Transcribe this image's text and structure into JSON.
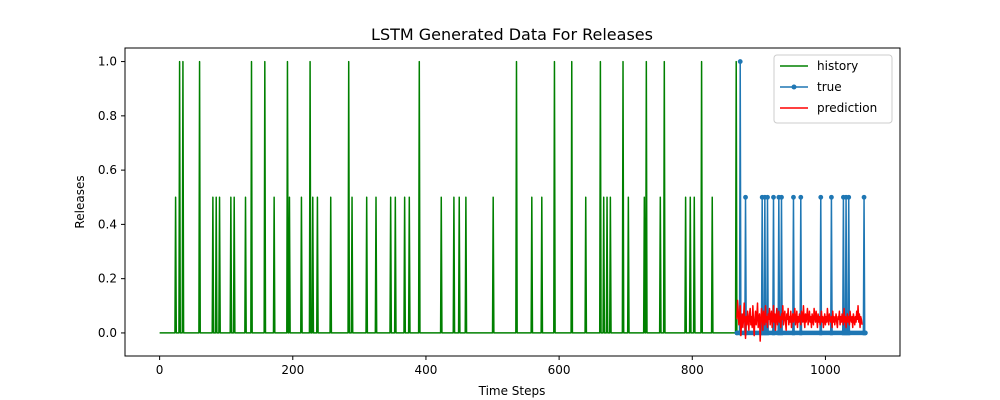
{
  "chart_data": {
    "type": "line",
    "title": "LSTM Generated Data For Releases",
    "xlabel": "Time Steps",
    "ylabel": "Releases",
    "xlim": [
      -52,
      1112
    ],
    "ylim": [
      -0.085,
      1.05
    ],
    "xticks": [
      0,
      200,
      400,
      600,
      800,
      1000
    ],
    "yticks": [
      0.0,
      0.2,
      0.4,
      0.6,
      0.8,
      1.0
    ],
    "xtick_labels": [
      "0",
      "200",
      "400",
      "600",
      "800",
      "1000"
    ],
    "ytick_labels": [
      "0.0",
      "0.2",
      "0.4",
      "0.6",
      "0.8",
      "1.0"
    ],
    "grid": false,
    "legend_position": "top-right",
    "legend": [
      "history",
      "true",
      "prediction"
    ],
    "colors": {
      "history": "#008000",
      "true": "#1f77b4",
      "prediction": "#ff0000"
    },
    "series": [
      {
        "name": "history",
        "style": "line",
        "x_range": [
          0,
          867
        ],
        "baseline": 0,
        "spikes": [
          [
            24,
            0.5
          ],
          [
            30,
            1.0
          ],
          [
            35,
            1.0
          ],
          [
            60,
            1.0
          ],
          [
            80,
            0.5
          ],
          [
            85,
            0.5
          ],
          [
            90,
            0.5
          ],
          [
            107,
            0.5
          ],
          [
            112,
            0.5
          ],
          [
            129,
            0.5
          ],
          [
            138,
            1.0
          ],
          [
            158,
            1.0
          ],
          [
            172,
            0.5
          ],
          [
            192,
            1.0
          ],
          [
            195,
            0.5
          ],
          [
            213,
            0.5
          ],
          [
            226,
            1.0
          ],
          [
            230,
            0.5
          ],
          [
            237,
            0.5
          ],
          [
            257,
            0.5
          ],
          [
            284,
            1.0
          ],
          [
            289,
            0.5
          ],
          [
            311,
            0.5
          ],
          [
            325,
            0.5
          ],
          [
            347,
            0.5
          ],
          [
            354,
            0.5
          ],
          [
            368,
            0.5
          ],
          [
            375,
            0.5
          ],
          [
            390,
            1.0
          ],
          [
            423,
            0.5
          ],
          [
            442,
            0.5
          ],
          [
            450,
            0.5
          ],
          [
            460,
            0.5
          ],
          [
            501,
            0.5
          ],
          [
            536,
            1.0
          ],
          [
            559,
            0.5
          ],
          [
            574,
            0.5
          ],
          [
            593,
            1.0
          ],
          [
            619,
            1.0
          ],
          [
            640,
            0.5
          ],
          [
            662,
            1.0
          ],
          [
            667,
            0.5
          ],
          [
            672,
            0.5
          ],
          [
            677,
            0.5
          ],
          [
            696,
            1.0
          ],
          [
            704,
            0.5
          ],
          [
            728,
            0.5
          ],
          [
            731,
            1.0
          ],
          [
            752,
            0.5
          ],
          [
            758,
            1.0
          ],
          [
            790,
            0.5
          ],
          [
            797,
            0.5
          ],
          [
            803,
            0.5
          ],
          [
            814,
            1.0
          ],
          [
            830,
            0.5
          ],
          [
            866,
            1.0
          ]
        ]
      },
      {
        "name": "true",
        "style": "line-marker",
        "x_range": [
          867,
          1060
        ],
        "baseline": 0,
        "spikes": [
          [
            872,
            1.0
          ],
          [
            880,
            0.5
          ],
          [
            905,
            0.5
          ],
          [
            909,
            0.5
          ],
          [
            913,
            0.5
          ],
          [
            922,
            0.5
          ],
          [
            930,
            0.5
          ],
          [
            934,
            0.5
          ],
          [
            952,
            0.5
          ],
          [
            963,
            0.5
          ],
          [
            993,
            0.5
          ],
          [
            1009,
            0.5
          ],
          [
            1027,
            0.5
          ],
          [
            1031,
            0.5
          ],
          [
            1035,
            0.5
          ],
          [
            1058,
            0.5
          ]
        ]
      },
      {
        "name": "prediction",
        "style": "line",
        "x_start": 867,
        "x_step": 1,
        "values": [
          0.05,
          0.12,
          0.08,
          0.03,
          0.06,
          0.1,
          -0.01,
          0.04,
          0.07,
          0.02,
          0.05,
          0.11,
          0.04,
          -0.02,
          0.06,
          0.03,
          0.08,
          0.05,
          0.01,
          0.07,
          0.09,
          0.03,
          0.06,
          0.02,
          0.1,
          0.04,
          -0.01,
          0.05,
          0.08,
          0.03,
          0.06,
          0.11,
          0.02,
          0.05,
          0.07,
          -0.03,
          0.04,
          0.09,
          0.06,
          0.01,
          0.08,
          0.05,
          0.03,
          0.1,
          0.04,
          0.06,
          0.02,
          0.07,
          0.05,
          0.09,
          0.03,
          0.06,
          0.08,
          0.02,
          0.05,
          0.1,
          0.04,
          0.07,
          0.01,
          0.06,
          0.09,
          0.03,
          0.05,
          0.08,
          0.04,
          0.06,
          0.02,
          0.07,
          0.05,
          0.1,
          0.03,
          0.06,
          0.08,
          0.04,
          0.01,
          0.07,
          0.05,
          0.09,
          0.03,
          0.06,
          0.04,
          0.08,
          0.02,
          0.05,
          0.07,
          0.04,
          0.06,
          0.09,
          0.03,
          0.05,
          0.08,
          0.02,
          0.06,
          0.04,
          0.07,
          0.05,
          0.03,
          0.08,
          0.06,
          0.04,
          0.1,
          0.05,
          0.02,
          0.07,
          0.04,
          0.06,
          0.09,
          0.03,
          0.05,
          0.08,
          0.04,
          0.06,
          0.02,
          0.07,
          0.05,
          0.03,
          0.09,
          0.06,
          0.04,
          0.08,
          0.05,
          0.02,
          0.07,
          0.04,
          0.06,
          0.03,
          0.05,
          0.08,
          0.04,
          0.06,
          0.02,
          0.05,
          0.07,
          0.03,
          0.06,
          0.04,
          0.09,
          0.05,
          0.03,
          0.07,
          0.05,
          0.04,
          0.06,
          0.02,
          0.08,
          0.04,
          0.06,
          0.03,
          0.05,
          0.07,
          0.04,
          0.02,
          0.06,
          0.05,
          0.08,
          0.03,
          0.06,
          0.04,
          0.07,
          0.05,
          0.03,
          0.09,
          0.04,
          0.06,
          0.02,
          0.05,
          0.07,
          0.04,
          0.06,
          0.03,
          0.08,
          0.05,
          0.04,
          0.06,
          0.02,
          0.07,
          0.05,
          0.03,
          0.06,
          0.04,
          0.08,
          0.05,
          0.1,
          0.04,
          0.07,
          0.02,
          0.06,
          0.05,
          0.03
        ]
      }
    ]
  }
}
